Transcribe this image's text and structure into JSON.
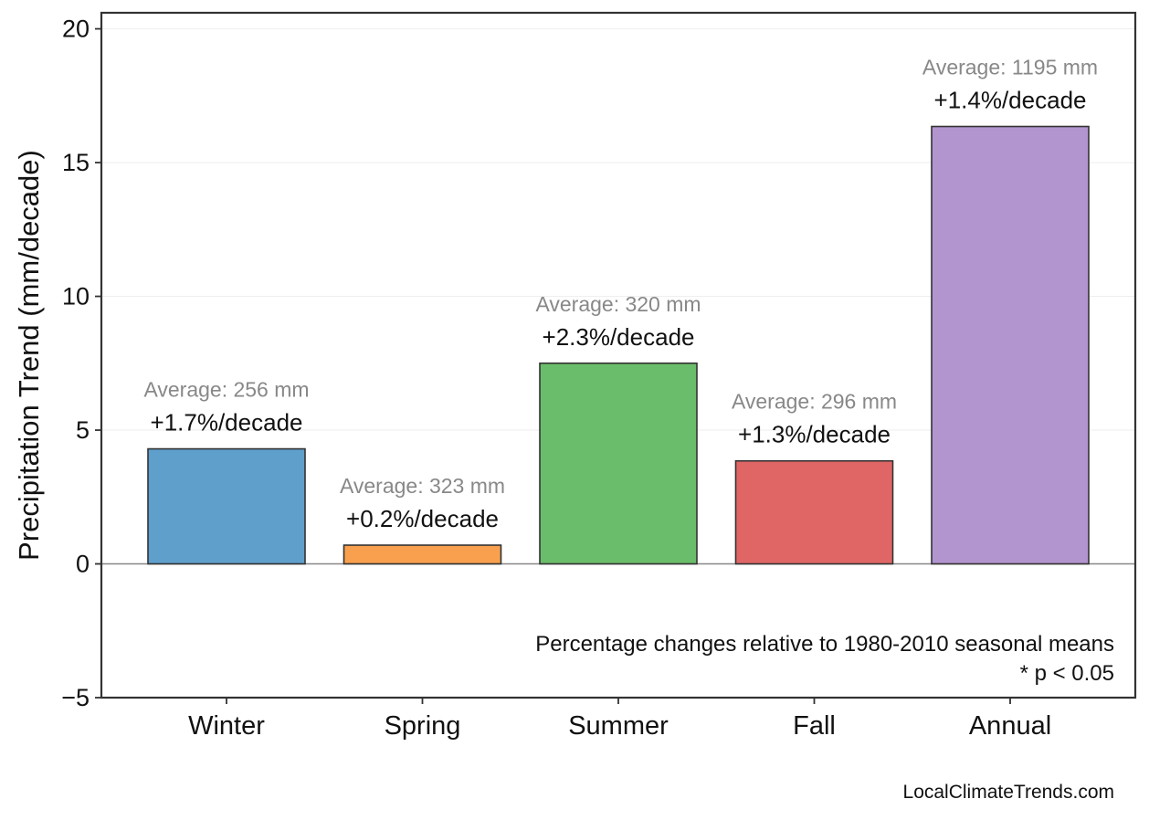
{
  "chart_data": {
    "type": "bar",
    "ylabel": "Precipitation Trend (mm/decade)",
    "xlabel": "",
    "ylim": [
      -5,
      20.6
    ],
    "yticks": [
      -5,
      0,
      5,
      10,
      15,
      20
    ],
    "ytick_labels": [
      "−5",
      "0",
      "5",
      "10",
      "15",
      "20"
    ],
    "grid": true,
    "categories": [
      "Winter",
      "Spring",
      "Summer",
      "Fall",
      "Annual"
    ],
    "values": [
      4.3,
      0.7,
      7.5,
      3.85,
      16.35
    ],
    "colors": [
      "#5f9fcc",
      "#f8a04e",
      "#6abd6a",
      "#e06666",
      "#b294cf"
    ],
    "percent_labels": [
      "+1.7%/decade",
      "+0.2%/decade",
      "+2.3%/decade",
      "+1.3%/decade",
      "+1.4%/decade"
    ],
    "average_labels": [
      "Average: 256 mm",
      "Average: 323 mm",
      "Average: 320 mm",
      "Average: 296 mm",
      "Average: 1195 mm"
    ],
    "annotations": [
      "Percentage changes relative to 1980-2010 seasonal means",
      "* p < 0.05"
    ],
    "credit": "LocalClimateTrends.com"
  }
}
